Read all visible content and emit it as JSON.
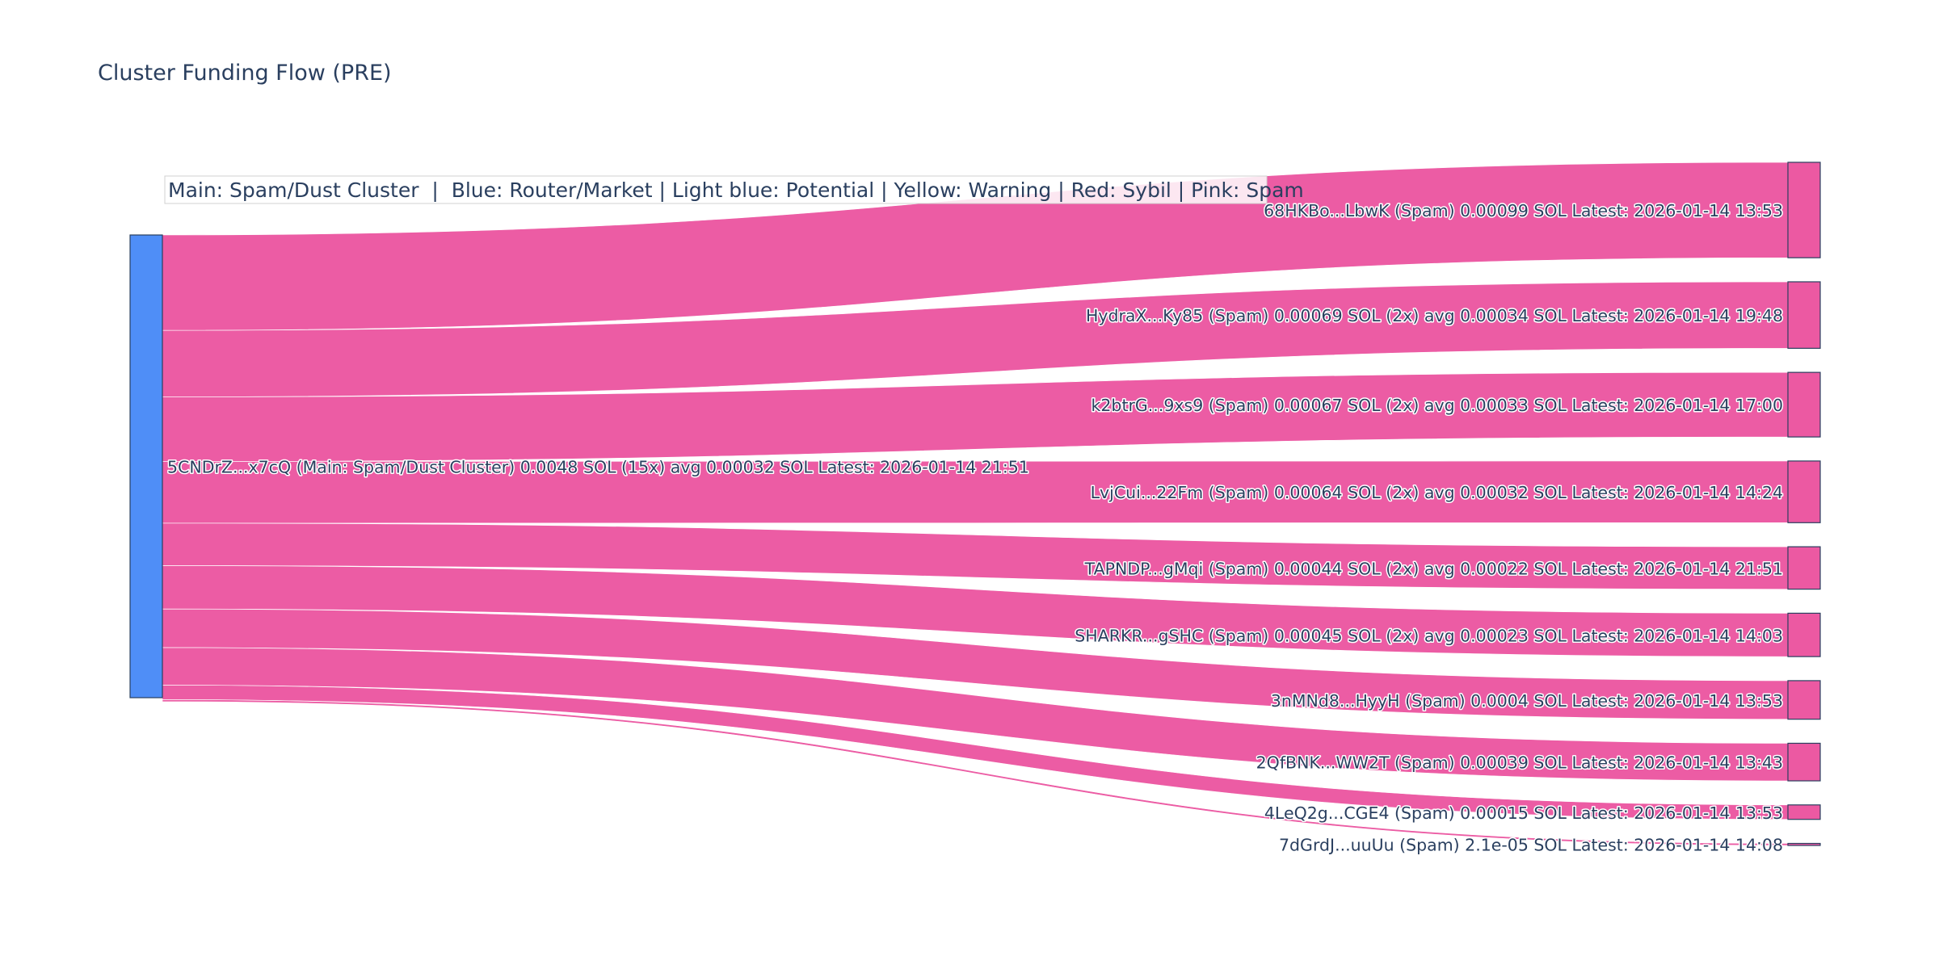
{
  "title": "Cluster Funding Flow (PRE)",
  "legend_note": "Main: Spam/Dust Cluster  |  Blue: Router/Market | Light blue: Potential | Yellow: Warning | Red: Sybil | Pink: Spam",
  "colors": {
    "main_node": "#4F8EF7",
    "spam": "#EC59A2",
    "title": "#2a3f5f",
    "node_border": "#2a3f5f"
  },
  "chart_data": {
    "type": "sankey",
    "title": "Cluster Funding Flow (PRE)",
    "source": {
      "label": "5CNDrZ...x7cQ (Main: Spam/Dust Cluster) 0.0048 SOL (15x) avg 0.00032 SOL Latest: 2026-01-14 21:51",
      "value": 0.0048,
      "category": "main"
    },
    "targets": [
      {
        "label": "68HKBo...LbwK (Spam) 0.00099 SOL Latest: 2026-01-14 13:53",
        "value": 0.00099,
        "category": "spam"
      },
      {
        "label": "HydraX...Ky85 (Spam) 0.00069 SOL (2x) avg 0.00034 SOL Latest: 2026-01-14 19:48",
        "value": 0.00069,
        "category": "spam"
      },
      {
        "label": "k2btrG...9xs9 (Spam) 0.00067 SOL (2x) avg 0.00033 SOL Latest: 2026-01-14 17:00",
        "value": 0.00067,
        "category": "spam"
      },
      {
        "label": "LvjCui...22Fm (Spam) 0.00064 SOL (2x) avg 0.00032 SOL Latest: 2026-01-14 14:24",
        "value": 0.00064,
        "category": "spam"
      },
      {
        "label": "TAPNDP...gMqi (Spam) 0.00044 SOL (2x) avg 0.00022 SOL Latest: 2026-01-14 21:51",
        "value": 0.00044,
        "category": "spam"
      },
      {
        "label": "SHARKR...gSHC (Spam) 0.00045 SOL (2x) avg 0.00023 SOL Latest: 2026-01-14 14:03",
        "value": 0.00045,
        "category": "spam"
      },
      {
        "label": "3nMNd8...HyyH (Spam) 0.0004 SOL Latest: 2026-01-14 13:53",
        "value": 0.0004,
        "category": "spam"
      },
      {
        "label": "2QfBNK...WW2T (Spam) 0.00039 SOL Latest: 2026-01-14 13:43",
        "value": 0.00039,
        "category": "spam"
      },
      {
        "label": "4LeQ2g...CGE4 (Spam) 0.00015 SOL Latest: 2026-01-14 13:53",
        "value": 0.00015,
        "category": "spam"
      },
      {
        "label": "7dGrdJ...uuUu (Spam) 2.1e-05 SOL Latest: 2026-01-14 14:08",
        "value": 2.1e-05,
        "category": "spam"
      }
    ]
  }
}
